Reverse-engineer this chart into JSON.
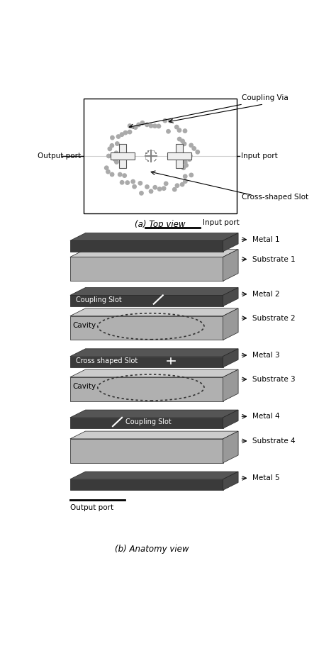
{
  "metal_color": "#333333",
  "metal_top_color": "#555555",
  "metal_side_color": "#444444",
  "substrate_color": "#bbbbbb",
  "substrate_top_color": "#cccccc",
  "substrate_side_color": "#999999",
  "via_color": "#aaaaaa",
  "white": "#ffffff",
  "black": "#000000",
  "layer_labels": [
    "Metal 1",
    "Substrate 1",
    "Metal 2",
    "Substrate 2",
    "Metal 3",
    "Substrate 3",
    "Metal 4",
    "Substrate 4",
    "Metal 5"
  ],
  "layer_types": [
    "metal",
    "substrate",
    "metal",
    "substrate",
    "metal",
    "substrate",
    "metal",
    "substrate",
    "metal"
  ]
}
